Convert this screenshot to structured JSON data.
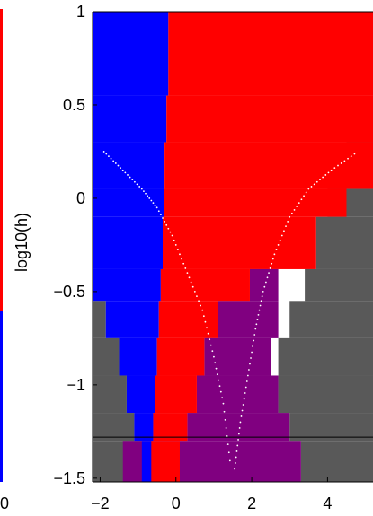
{
  "chart_data": {
    "type": "heatmap",
    "title": "",
    "xlabel": "",
    "ylabel": "log10(h)",
    "xlim": [
      -2.2,
      5.2
    ],
    "ylim": [
      -1.52,
      1.0
    ],
    "xticks": [
      -2,
      0,
      2,
      4
    ],
    "xtick_labels": [
      "−2",
      "0",
      "2",
      "4"
    ],
    "yticks": [
      1,
      0.5,
      0,
      -0.5,
      -1,
      -1.5
    ],
    "ytick_labels": [
      "1",
      "0.5",
      "0",
      "−0.5",
      "−1",
      "−1.5"
    ],
    "grid": false,
    "legend": "none",
    "colors": {
      "blue_region": "#0000ff",
      "red_region": "#ff0000",
      "purple_region": "#800080",
      "gray_region": "#595959",
      "dotted_curve": "#ffffff",
      "reference_line": "#000000"
    },
    "reference_line_y": -1.28,
    "rows": [
      {
        "y0": 0.55,
        "y1": 1.0,
        "blue": [
          -2.2,
          -0.2
        ],
        "red": [
          -0.2,
          5.2
        ],
        "purple": [],
        "gray_from": null
      },
      {
        "y0": 0.3,
        "y1": 0.55,
        "blue": [
          -2.2,
          -0.25
        ],
        "red": [
          -0.25,
          5.2
        ],
        "purple": [],
        "gray_from": null
      },
      {
        "y0": 0.05,
        "y1": 0.3,
        "blue": [
          -2.2,
          -0.3
        ],
        "red": [
          -0.3,
          5.2
        ],
        "purple": [],
        "gray_from": 4.5
      },
      {
        "y0": -0.1,
        "y1": 0.05,
        "blue": [
          -2.2,
          -0.32
        ],
        "red": [
          -0.32,
          4.5
        ],
        "purple": [],
        "gray_from": 4.0
      },
      {
        "y0": -0.38,
        "y1": -0.1,
        "blue": [
          -2.2,
          -0.35
        ],
        "red": [
          -0.35,
          3.7
        ],
        "purple": [],
        "gray_from": 3.7
      },
      {
        "y0": -0.55,
        "y1": -0.38,
        "blue": [
          -2.2,
          -0.4
        ],
        "red": [
          -0.4,
          1.95
        ],
        "purple": [
          1.95,
          2.7
        ],
        "gray_from": 3.4
      },
      {
        "y0": -0.75,
        "y1": -0.55,
        "blue": [
          -1.85,
          -0.45
        ],
        "red": [
          -0.45,
          1.1
        ],
        "purple": [
          1.1,
          2.7
        ],
        "gray_from": 3.0
      },
      {
        "y0": -0.95,
        "y1": -0.75,
        "blue": [
          -1.5,
          -0.5
        ],
        "red": [
          -0.5,
          0.75
        ],
        "purple": [
          0.75,
          2.5
        ],
        "gray_from": 2.7
      },
      {
        "y0": -1.15,
        "y1": -0.95,
        "blue": [
          -1.3,
          -0.55
        ],
        "red": [
          -0.55,
          0.55
        ],
        "purple": [
          0.55,
          2.7
        ],
        "gray_from": 2.7
      },
      {
        "y0": -1.3,
        "y1": -1.15,
        "blue": [
          -1.1,
          -0.6
        ],
        "red": [
          -0.6,
          0.3
        ],
        "purple": [
          0.3,
          3.0
        ],
        "gray_from": 3.0
      },
      {
        "y0": -1.52,
        "y1": -1.3,
        "blue": [
          -0.9,
          -0.65
        ],
        "red": [
          -0.65,
          0.1
        ],
        "purple": [
          -1.4,
          3.3
        ],
        "gray_from": 3.3
      }
    ],
    "dotted_curve_left": {
      "x": [
        -1.9,
        -1.4,
        -0.9,
        -0.5,
        -0.1,
        0.3,
        0.7,
        1.0,
        1.25,
        1.45
      ],
      "y": [
        0.25,
        0.15,
        0.05,
        -0.05,
        -0.2,
        -0.4,
        -0.6,
        -0.85,
        -1.1,
        -1.45
      ]
    },
    "dotted_curve_right": {
      "x": [
        1.55,
        1.7,
        1.9,
        2.1,
        2.3,
        2.6,
        3.0,
        3.5,
        4.1,
        4.8
      ],
      "y": [
        -1.45,
        -1.2,
        -0.95,
        -0.7,
        -0.5,
        -0.3,
        -0.1,
        0.05,
        0.15,
        0.25
      ]
    },
    "left_panel_fragment": {
      "xtick_label": "0",
      "colors": [
        "#ff0000",
        "#0000ff"
      ],
      "boundary_y": -0.5
    }
  }
}
